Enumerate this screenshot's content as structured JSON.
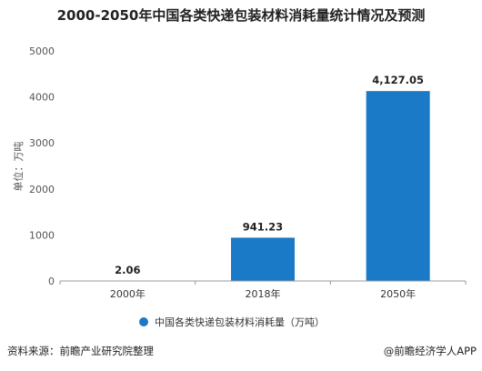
{
  "title": "2000-2050年中国各类快递包装材料消耗量统计情况及预测",
  "footer": {
    "source": "资料来源：前瞻产业研究院整理",
    "app": "@前瞻经济学人APP"
  },
  "colors": {
    "bar": "#1a7ac7",
    "grid": "#e3e3e3",
    "axis": "#999999"
  },
  "chart_data": {
    "type": "bar",
    "categories": [
      "2000年",
      "2018年",
      "2050年"
    ],
    "series": [
      {
        "name": "中国各类快递包装材料消耗量（万吨）",
        "values": [
          2.06,
          941.23,
          4127.05
        ]
      }
    ],
    "data_labels": [
      "2.06",
      "941.23",
      "4,127.05"
    ],
    "ylabel": "单位：万吨",
    "xlabel": "",
    "ylim": [
      0,
      5000
    ],
    "yticks": [
      0,
      1000,
      2000,
      3000,
      4000,
      5000
    ],
    "grid": false,
    "legend": "bottom-center"
  }
}
